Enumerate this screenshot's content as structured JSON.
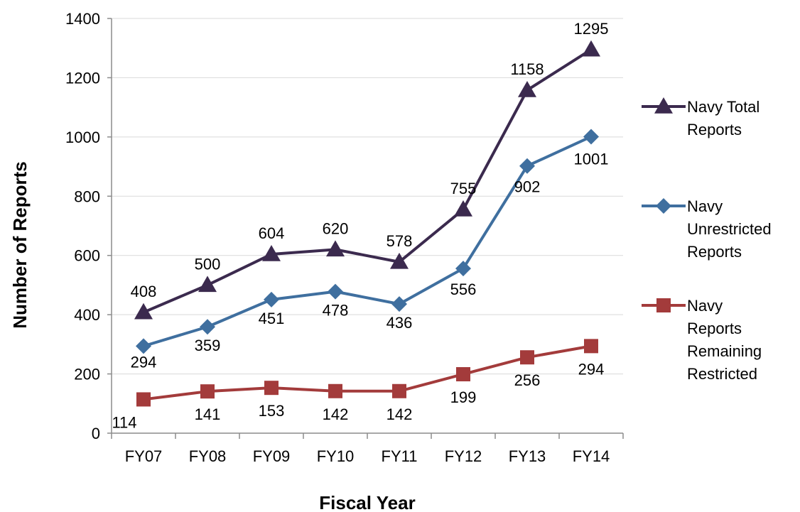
{
  "chart_data": {
    "type": "line",
    "title": "",
    "xlabel": "Fiscal Year",
    "ylabel": "Number of Reports",
    "categories": [
      "FY07",
      "FY08",
      "FY09",
      "FY10",
      "FY11",
      "FY12",
      "FY13",
      "FY14"
    ],
    "ylim": [
      0,
      1400
    ],
    "yticks": [
      0,
      200,
      400,
      600,
      800,
      1000,
      1200,
      1400
    ],
    "grid": true,
    "legend_position": "right",
    "series": [
      {
        "name": "Navy Total Reports",
        "legend_lines": [
          "Navy Total",
          "Reports"
        ],
        "values": [
          408,
          500,
          604,
          620,
          578,
          755,
          1158,
          1295
        ],
        "color": "#3b2a4e",
        "marker": "triangle"
      },
      {
        "name": "Navy Unrestricted Reports",
        "legend_lines": [
          "Navy",
          "Unrestricted",
          "Reports"
        ],
        "values": [
          294,
          359,
          451,
          478,
          436,
          556,
          902,
          1001
        ],
        "color": "#3f6f9f",
        "marker": "diamond"
      },
      {
        "name": "Navy Reports Remaining Restricted",
        "legend_lines": [
          "Navy",
          "Reports",
          "Remaining",
          "Restricted"
        ],
        "values": [
          114,
          141,
          153,
          142,
          142,
          199,
          256,
          294
        ],
        "color": "#a33b3b",
        "marker": "square"
      }
    ]
  }
}
